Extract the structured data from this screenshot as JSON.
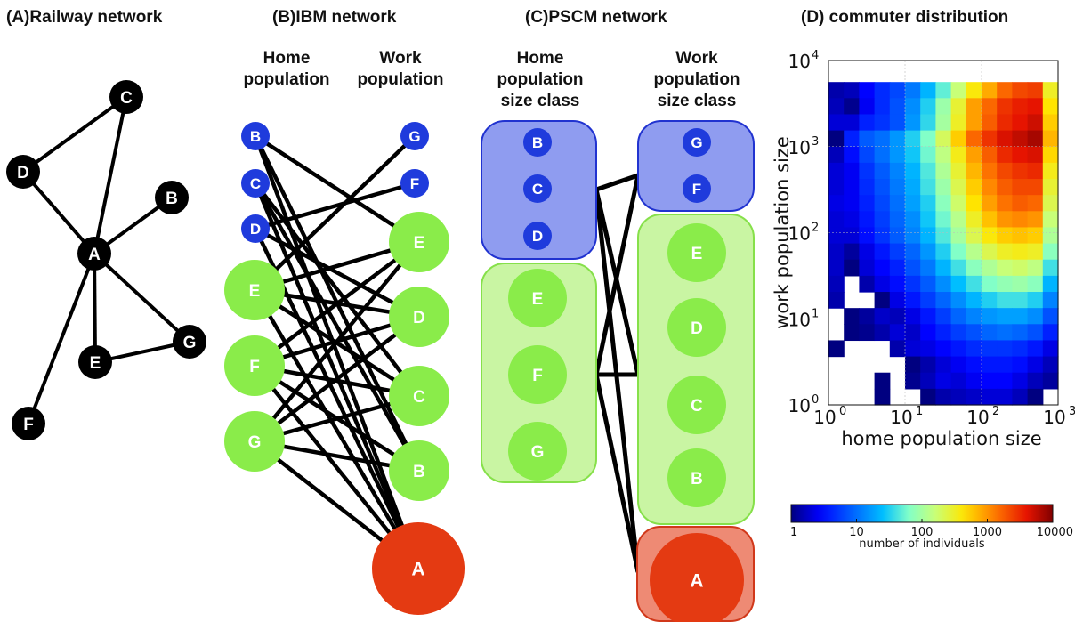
{
  "colors": {
    "node_black": "#000000",
    "node_blue": "#1f3bdc",
    "node_green": "#8aec4a",
    "node_red": "#e43a12",
    "box_blue_fill": "#8f9cf0",
    "box_blue_stroke": "#2133d0",
    "box_green_fill": "#c9f5a3",
    "box_green_stroke": "#86e04a",
    "box_red_fill": "#ee8a74",
    "box_red_stroke": "#d1381a",
    "edge": "#000000"
  },
  "panels": {
    "a": {
      "title": "(A)Railway network"
    },
    "b": {
      "title": "(B)IBM network",
      "home_header": [
        "Home",
        "population"
      ],
      "work_header": [
        "Work",
        "population"
      ]
    },
    "c": {
      "title": "(C)PSCM network",
      "home_header": [
        "Home",
        "population",
        "size class"
      ],
      "work_header": [
        "Work",
        "population",
        "size class"
      ]
    },
    "d": {
      "title": "(D) commuter distribution"
    }
  },
  "chart_data": {
    "type": "heatmap",
    "title": "(D) commuter distribution",
    "xlabel": "home population size",
    "ylabel": "work population size",
    "xscale": "log",
    "yscale": "log",
    "xlim": [
      1,
      1000
    ],
    "ylim": [
      1,
      10000
    ],
    "x_ticks": [
      {
        "base": "10",
        "exp": "0"
      },
      {
        "base": "10",
        "exp": "1"
      },
      {
        "base": "10",
        "exp": "2"
      },
      {
        "base": "10",
        "exp": "3"
      }
    ],
    "y_ticks": [
      {
        "base": "10",
        "exp": "0"
      },
      {
        "base": "10",
        "exp": "1"
      },
      {
        "base": "10",
        "exp": "2"
      },
      {
        "base": "10",
        "exp": "3"
      },
      {
        "base": "10",
        "exp": "4"
      }
    ],
    "grid": true,
    "colorbar": {
      "label": "number of individuals",
      "scale": "log",
      "range": [
        1,
        10000
      ],
      "ticks": [
        "1",
        "10",
        "100",
        "1000",
        "10000"
      ],
      "placement": "bottom"
    },
    "colormap": "jet",
    "value_grid": {
      "x_bins": 15,
      "y_bins": 20,
      "row_order": "top (high work population) to bottom (low work population)",
      "cell_value": "log10 of number of individuals, -1 = empty",
      "rows": [
        [
          0.15,
          0.2,
          0.45,
          0.65,
          0.8,
          1.05,
          1.35,
          1.7,
          2.2,
          2.6,
          2.9,
          3.2,
          3.35,
          3.4,
          2.5
        ],
        [
          0.2,
          0.05,
          0.4,
          0.65,
          0.85,
          1.15,
          1.5,
          1.95,
          2.45,
          2.95,
          3.2,
          3.45,
          3.55,
          3.6,
          2.65
        ],
        [
          0.3,
          0.3,
          0.6,
          0.7,
          0.85,
          1.2,
          1.55,
          2.0,
          2.5,
          2.95,
          3.25,
          3.5,
          3.6,
          3.7,
          2.75
        ],
        [
          0.0,
          0.6,
          0.9,
          1.0,
          1.2,
          1.5,
          1.8,
          2.3,
          2.75,
          3.2,
          3.45,
          3.65,
          3.75,
          3.85,
          2.85
        ],
        [
          0.2,
          0.5,
          0.8,
          1.0,
          1.2,
          1.45,
          1.75,
          2.15,
          2.55,
          2.95,
          3.25,
          3.5,
          3.6,
          3.65,
          2.7
        ],
        [
          0.3,
          0.4,
          0.7,
          0.9,
          1.1,
          1.35,
          1.65,
          2.05,
          2.45,
          2.85,
          3.15,
          3.35,
          3.45,
          3.5,
          2.55
        ],
        [
          0.3,
          0.4,
          0.65,
          0.85,
          1.05,
          1.3,
          1.6,
          1.95,
          2.35,
          2.75,
          3.05,
          3.25,
          3.35,
          3.35,
          2.45
        ],
        [
          0.35,
          0.4,
          0.6,
          0.8,
          1.0,
          1.25,
          1.5,
          1.85,
          2.25,
          2.65,
          2.95,
          3.15,
          3.25,
          3.2,
          2.35
        ],
        [
          0.3,
          0.35,
          0.55,
          0.75,
          0.95,
          1.15,
          1.45,
          1.75,
          2.1,
          2.5,
          2.8,
          3.0,
          3.05,
          3.0,
          2.2
        ],
        [
          0.3,
          0.3,
          0.5,
          0.7,
          0.9,
          1.1,
          1.35,
          1.65,
          2.0,
          2.35,
          2.6,
          2.75,
          2.8,
          2.75,
          2.05
        ],
        [
          0.25,
          0.1,
          0.35,
          0.55,
          0.75,
          0.95,
          1.2,
          1.5,
          1.8,
          2.1,
          2.35,
          2.5,
          2.55,
          2.5,
          1.85
        ],
        [
          0.25,
          0.0,
          0.3,
          0.45,
          0.6,
          0.85,
          1.05,
          1.35,
          1.6,
          1.85,
          2.05,
          2.2,
          2.25,
          2.15,
          1.6
        ],
        [
          0.2,
          -1,
          0.15,
          0.35,
          0.5,
          0.7,
          0.9,
          1.15,
          1.4,
          1.6,
          1.8,
          1.9,
          1.95,
          1.85,
          1.35
        ],
        [
          0.15,
          -1,
          -1,
          0.0,
          0.35,
          0.55,
          0.75,
          0.95,
          1.15,
          1.35,
          1.5,
          1.6,
          1.6,
          1.5,
          1.1
        ],
        [
          -1,
          0.0,
          0.1,
          0.25,
          0.2,
          0.35,
          0.55,
          0.75,
          0.95,
          1.1,
          1.2,
          1.25,
          1.25,
          1.15,
          0.85
        ],
        [
          -1,
          0.0,
          0.05,
          0.15,
          0.3,
          0.25,
          0.45,
          0.6,
          0.75,
          0.85,
          0.95,
          1.0,
          0.95,
          0.85,
          0.6
        ],
        [
          0.0,
          -1,
          -1,
          -1,
          0.15,
          0.3,
          0.35,
          0.45,
          0.55,
          0.65,
          0.7,
          0.7,
          0.65,
          0.55,
          0.35
        ],
        [
          -1,
          -1,
          -1,
          -1,
          -1,
          0.0,
          0.15,
          0.3,
          0.4,
          0.5,
          0.55,
          0.55,
          0.5,
          0.35,
          0.2
        ],
        [
          -1,
          -1,
          -1,
          0.0,
          -1,
          0.05,
          0.2,
          0.35,
          0.3,
          0.4,
          0.45,
          0.45,
          0.35,
          0.2,
          0.1
        ],
        [
          -1,
          -1,
          -1,
          0.0,
          -1,
          -1,
          0.0,
          0.15,
          0.2,
          0.25,
          0.3,
          0.3,
          0.2,
          0.0,
          -1
        ]
      ]
    }
  },
  "railway": {
    "nodes": [
      {
        "id": "A",
        "label": "A"
      },
      {
        "id": "B",
        "label": "B"
      },
      {
        "id": "C",
        "label": "C"
      },
      {
        "id": "D",
        "label": "D"
      },
      {
        "id": "E",
        "label": "E"
      },
      {
        "id": "F",
        "label": "F"
      },
      {
        "id": "G",
        "label": "G"
      }
    ],
    "edges": [
      [
        "C",
        "D"
      ],
      [
        "C",
        "A"
      ],
      [
        "D",
        "A"
      ],
      [
        "B",
        "A"
      ],
      [
        "A",
        "E"
      ],
      [
        "A",
        "G"
      ],
      [
        "E",
        "G"
      ],
      [
        "A",
        "F"
      ]
    ]
  },
  "ibm": {
    "home_nodes": [
      {
        "id": "B",
        "label": "B",
        "color": "blue"
      },
      {
        "id": "C",
        "label": "C",
        "color": "blue"
      },
      {
        "id": "D",
        "label": "D",
        "color": "blue"
      },
      {
        "id": "E",
        "label": "E",
        "color": "green"
      },
      {
        "id": "F",
        "label": "F",
        "color": "green"
      },
      {
        "id": "G",
        "label": "G",
        "color": "green"
      }
    ],
    "work_nodes": [
      {
        "id": "G",
        "label": "G",
        "color": "blue"
      },
      {
        "id": "F",
        "label": "F",
        "color": "blue"
      },
      {
        "id": "E",
        "label": "E",
        "color": "green"
      },
      {
        "id": "D",
        "label": "D",
        "color": "green"
      },
      {
        "id": "C",
        "label": "C",
        "color": "green"
      },
      {
        "id": "B",
        "label": "B",
        "color": "green"
      },
      {
        "id": "A",
        "label": "A",
        "color": "red"
      }
    ],
    "edges": [
      [
        "B",
        "E"
      ],
      [
        "B",
        "A"
      ],
      [
        "B",
        "B"
      ],
      [
        "C",
        "A"
      ],
      [
        "C",
        "C"
      ],
      [
        "C",
        "B"
      ],
      [
        "D",
        "F"
      ],
      [
        "D",
        "A"
      ],
      [
        "D",
        "D"
      ],
      [
        "E",
        "G"
      ],
      [
        "E",
        "D"
      ],
      [
        "E",
        "A"
      ],
      [
        "E",
        "C"
      ],
      [
        "E",
        "E"
      ],
      [
        "F",
        "E"
      ],
      [
        "F",
        "D"
      ],
      [
        "F",
        "C"
      ],
      [
        "F",
        "A"
      ],
      [
        "F",
        "B"
      ],
      [
        "G",
        "D"
      ],
      [
        "G",
        "C"
      ],
      [
        "G",
        "A"
      ],
      [
        "G",
        "B"
      ],
      [
        "G",
        "E"
      ]
    ]
  },
  "pscm": {
    "home_classes": [
      {
        "id": "h-small",
        "color": "blue",
        "nodes": [
          "B",
          "C",
          "D"
        ]
      },
      {
        "id": "h-medium",
        "color": "green",
        "nodes": [
          "E",
          "F",
          "G"
        ]
      }
    ],
    "work_classes": [
      {
        "id": "w-small",
        "color": "blue",
        "nodes": [
          "G",
          "F"
        ]
      },
      {
        "id": "w-medium",
        "color": "green",
        "nodes": [
          "E",
          "D",
          "C",
          "B"
        ]
      },
      {
        "id": "w-large",
        "color": "red",
        "nodes": [
          "A"
        ]
      }
    ],
    "edges": [
      [
        "h-small",
        "w-small"
      ],
      [
        "h-small",
        "w-medium"
      ],
      [
        "h-small",
        "w-large"
      ],
      [
        "h-medium",
        "w-small"
      ],
      [
        "h-medium",
        "w-medium"
      ],
      [
        "h-medium",
        "w-large"
      ]
    ]
  }
}
